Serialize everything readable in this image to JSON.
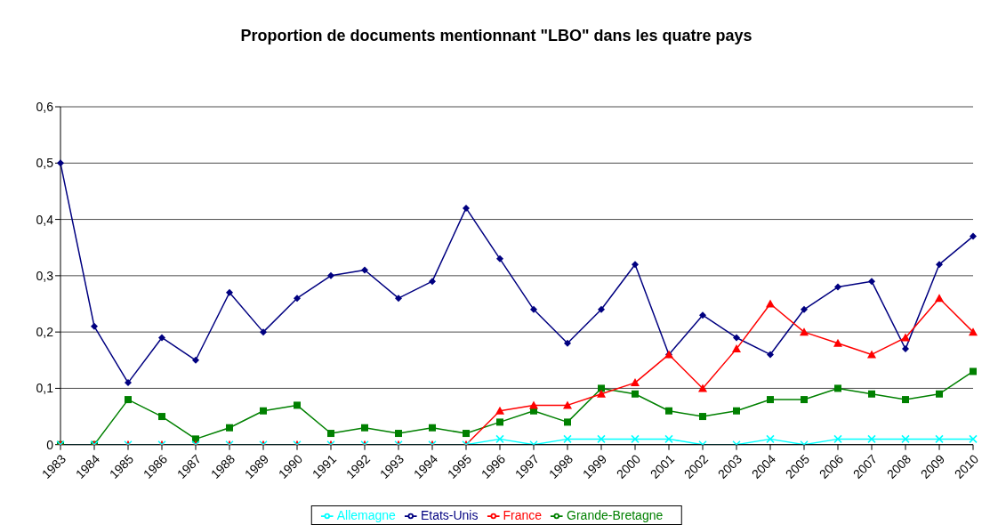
{
  "chart_data": {
    "type": "line",
    "title": "Proportion de documents mentionnant \"LBO\" dans les quatre pays",
    "categories": [
      "1983",
      "1984",
      "1985",
      "1986",
      "1987",
      "1988",
      "1989",
      "1990",
      "1991",
      "1992",
      "1993",
      "1994",
      "1995",
      "1996",
      "1997",
      "1998",
      "1999",
      "2000",
      "2001",
      "2002",
      "2003",
      "2004",
      "2005",
      "2006",
      "2007",
      "2008",
      "2009",
      "2010"
    ],
    "series": [
      {
        "name": "Etats-Unis",
        "color": "#000080",
        "marker": "diamond",
        "values": [
          0.5,
          0.21,
          0.11,
          0.19,
          0.15,
          0.27,
          0.2,
          0.26,
          0.3,
          0.31,
          0.26,
          0.29,
          0.42,
          0.33,
          0.24,
          0.18,
          0.24,
          0.32,
          0.16,
          0.23,
          0.19,
          0.16,
          0.24,
          0.28,
          0.29,
          0.17,
          0.32,
          0.37
        ]
      },
      {
        "name": "Grande-Bretagne",
        "color": "#008000",
        "marker": "square",
        "values": [
          0,
          0,
          0.08,
          0.05,
          0.01,
          0.03,
          0.06,
          0.07,
          0.02,
          0.03,
          0.02,
          0.03,
          0.02,
          0.04,
          0.06,
          0.04,
          0.1,
          0.09,
          0.06,
          0.05,
          0.06,
          0.08,
          0.08,
          0.1,
          0.09,
          0.08,
          0.09,
          0.13
        ]
      },
      {
        "name": "France",
        "color": "#ff0000",
        "marker": "triangle",
        "values": [
          0,
          0,
          0,
          0,
          0,
          0,
          0,
          0,
          0,
          0,
          0,
          0,
          0,
          0.06,
          0.07,
          0.07,
          0.09,
          0.11,
          0.16,
          0.1,
          0.17,
          0.25,
          0.2,
          0.18,
          0.16,
          0.19,
          0.26,
          0.2
        ]
      },
      {
        "name": "Allemagne",
        "color": "#00ffff",
        "marker": "cross",
        "values": [
          0,
          0,
          0,
          0,
          0,
          0,
          0,
          0,
          0,
          0,
          0,
          0,
          0,
          0.01,
          0,
          0.01,
          0.01,
          0.01,
          0.01,
          0,
          0,
          0.01,
          0,
          0.01,
          0.01,
          0.01,
          0.01,
          0.01
        ]
      }
    ],
    "ylim": [
      0,
      0.6
    ],
    "yticks": [
      0,
      {
        "value": 0.1,
        "label": "0,1"
      },
      {
        "value": 0.2,
        "label": "0,2"
      },
      {
        "value": 0.3,
        "label": "0,3"
      },
      {
        "value": 0.4,
        "label": "0,4"
      },
      {
        "value": 0.5,
        "label": "0,5"
      },
      {
        "value": 0.6,
        "label": "0,6"
      }
    ],
    "grid": "y",
    "legend": "bottom"
  }
}
